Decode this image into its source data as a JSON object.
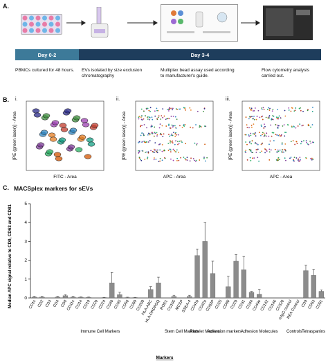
{
  "panel_labels": {
    "a": "A.",
    "b": "B.",
    "c": "C."
  },
  "timeline": {
    "day1": "Day 0-2",
    "day2": "Day 3-4"
  },
  "steps": [
    "PBMCs cultured for 48 hours.",
    "EVs isolated by size exclusion chromatography",
    "Multiplex bead assay used according to manufacturer's guide.",
    "Flow cytometry analysis carried out."
  ],
  "flow_plots": {
    "sub_labels": [
      "i.",
      "ii.",
      "iii."
    ],
    "y_label": "[PE (green laser)] - Area",
    "x_label_i": "FITC - Area",
    "x_label_ii": "APC - Area",
    "x_label_iii": "APC - Area"
  },
  "bar_chart_title": "MACSplex markers for sEVs",
  "colors": {
    "timeline_light": "#3d7a99",
    "timeline_dark": "#1e3d5c",
    "bar": "#8c8c8c"
  },
  "chart_data": {
    "type": "bar",
    "title": "MACSplex markers for sEVs",
    "ylabel": "Median APC signal relative to CD9, CD63 and CD81",
    "xlabel": "Markers",
    "ylim": [
      0,
      5
    ],
    "yticks": [
      0,
      1,
      2,
      3,
      4,
      5
    ],
    "categories": [
      "CD1c",
      "CD2",
      "CD3",
      "CD4",
      "CD8",
      "CD11c",
      "CD14",
      "CD19",
      "CD20",
      "CD24",
      "CD40",
      "CD45",
      "CD56",
      "CD69",
      "CD209",
      "HLA-ABC",
      "HLA-DRDPDQ",
      "ROR1",
      "CD105",
      "MCSP",
      "SSEA-4",
      "CD41b",
      "CD42a",
      "CD62P",
      "CD25",
      "CD86",
      "CD29",
      "CD31",
      "CD44",
      "CD49e",
      "CD142",
      "CD146",
      "CD326",
      "mIgG control",
      "REA Control",
      "CD9",
      "CD63",
      "CD81"
    ],
    "values": [
      0.05,
      0.05,
      0,
      0.05,
      0.12,
      0.05,
      0.04,
      0.03,
      0,
      0.02,
      0.8,
      0.18,
      0.02,
      0.02,
      0,
      0.45,
      0.8,
      0,
      0.08,
      0,
      0.08,
      2.25,
      3.0,
      1.3,
      0,
      0.6,
      1.95,
      1.5,
      0.3,
      0.2,
      0,
      0,
      0,
      0,
      0,
      1.45,
      1.2,
      0.35
    ],
    "errors": [
      0.03,
      0.03,
      0,
      0.03,
      0.05,
      0.03,
      0.02,
      0.02,
      0,
      0.01,
      0.55,
      0.12,
      0.02,
      0.01,
      0,
      0.15,
      0.3,
      0,
      0.06,
      0,
      0.06,
      0.35,
      1.0,
      0.65,
      0,
      0.55,
      0.35,
      0.7,
      0.04,
      0.25,
      0,
      0,
      0,
      0,
      0,
      0.28,
      0.32,
      0.08
    ],
    "groups": [
      {
        "name": "Immune Cell Markers",
        "from": 0,
        "to": 17
      },
      {
        "name": "Stem Cell Markers",
        "from": 18,
        "to": 20
      },
      {
        "name": "Platelet Markers",
        "from": 21,
        "to": 23
      },
      {
        "name": "Activation markers",
        "from": 24,
        "to": 25
      },
      {
        "name": "Adhesion Molecules",
        "from": 26,
        "to": 32
      },
      {
        "name": "Controls",
        "from": 33,
        "to": 34
      },
      {
        "name": "Tetraspanins",
        "from": 35,
        "to": 37
      }
    ]
  }
}
